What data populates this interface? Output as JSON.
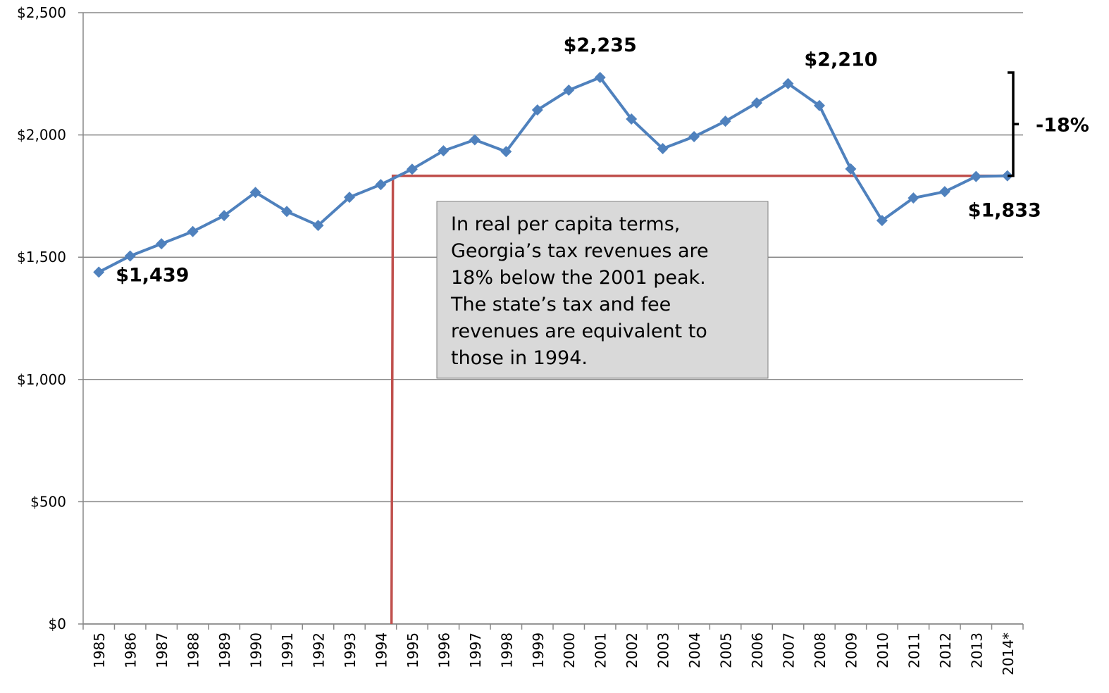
{
  "chart_data": {
    "type": "line",
    "categories": [
      "1985",
      "1986",
      "1987",
      "1988",
      "1989",
      "1990",
      "1991",
      "1992",
      "1993",
      "1994",
      "1995",
      "1996",
      "1997",
      "1998",
      "1999",
      "2000",
      "2001",
      "2002",
      "2003",
      "2004",
      "2005",
      "2006",
      "2007",
      "2008",
      "2009",
      "2010",
      "2011",
      "2012",
      "2013",
      "2014*"
    ],
    "series": [
      {
        "color": "#4f81bd",
        "values": [
          1439,
          1505,
          1555,
          1605,
          1670,
          1765,
          1687,
          1630,
          1745,
          1797,
          1860,
          1935,
          1980,
          1932,
          2102,
          2183,
          2235,
          2065,
          1944,
          1993,
          2056,
          2131,
          2210,
          2120,
          1861,
          1650,
          1742,
          1768,
          1830,
          1833
        ],
        "value_labels": [
          "$1,439",
          null,
          null,
          null,
          null,
          null,
          null,
          null,
          null,
          null,
          null,
          null,
          null,
          null,
          null,
          null,
          "$2,235",
          null,
          null,
          null,
          null,
          null,
          "$2,210",
          null,
          null,
          null,
          null,
          null,
          null,
          "$1,833"
        ]
      }
    ],
    "ylim": [
      0,
      2500
    ],
    "yticks": [
      {
        "value": 0,
        "label": "$0"
      },
      {
        "value": 500,
        "label": "$500"
      },
      {
        "value": 1000,
        "label": "$1,000"
      },
      {
        "value": 1500,
        "label": "$1,500"
      },
      {
        "value": 2000,
        "label": "$2,000"
      },
      {
        "value": 2500,
        "label": "$2,500"
      }
    ],
    "grid": true,
    "reference_line": {
      "value": 1833,
      "color": "#c0504d"
    },
    "annotations": {
      "change": "-18%",
      "note": [
        "In real per capita terms,",
        "Georgia’s tax revenues are",
        "18% below the 2001 peak.",
        "The state’s tax and fee",
        "revenues are equivalent to",
        "those in 1994."
      ]
    }
  }
}
